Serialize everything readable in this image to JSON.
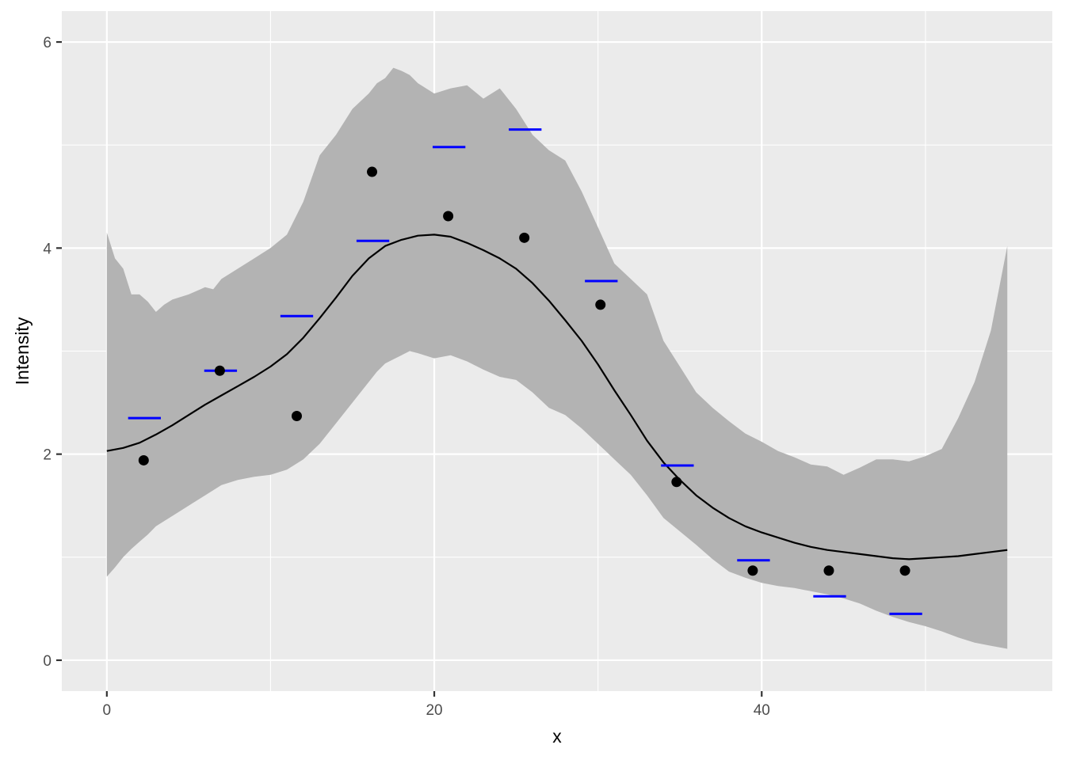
{
  "chart_data": {
    "type": "line",
    "xlabel": "x",
    "ylabel": "Intensity",
    "xlim": [
      -2.75,
      57.75
    ],
    "ylim": [
      -0.3,
      6.3
    ],
    "x_ticks": [
      0,
      20,
      40
    ],
    "y_ticks": [
      0,
      2,
      4,
      6
    ],
    "x_tick_labels": [
      "0",
      "20",
      "40"
    ],
    "y_tick_labels": [
      "0",
      "2",
      "4",
      "6"
    ],
    "grid": true,
    "colors": {
      "panel": "#ebebeb",
      "grid": "#ffffff",
      "ribbon": "#b3b3b3",
      "line": "#000000",
      "points": "#000000",
      "segments": "#0000ff"
    },
    "ribbon": {
      "x": [
        0,
        0.5,
        1,
        1.5,
        2,
        2.5,
        3,
        3.5,
        4,
        5,
        6,
        6.5,
        7,
        8,
        9,
        10,
        11,
        12,
        13,
        14,
        15,
        16,
        16.5,
        17,
        17.5,
        18,
        18.5,
        19,
        20,
        21,
        22,
        23,
        24,
        25,
        26,
        27,
        28,
        29,
        30,
        31,
        32,
        33,
        34,
        35,
        36,
        37,
        38,
        39,
        40,
        41,
        42,
        43,
        44,
        45,
        46,
        47,
        48,
        49,
        50,
        51,
        52,
        53,
        54,
        55
      ],
      "upper": [
        4.15,
        3.9,
        3.8,
        3.55,
        3.55,
        3.48,
        3.38,
        3.45,
        3.5,
        3.55,
        3.62,
        3.6,
        3.7,
        3.8,
        3.9,
        4.0,
        4.13,
        4.45,
        4.9,
        5.1,
        5.35,
        5.5,
        5.6,
        5.65,
        5.75,
        5.72,
        5.68,
        5.6,
        5.5,
        5.55,
        5.58,
        5.45,
        5.55,
        5.35,
        5.1,
        4.95,
        4.85,
        4.55,
        4.2,
        3.85,
        3.7,
        3.55,
        3.1,
        2.85,
        2.6,
        2.45,
        2.32,
        2.2,
        2.12,
        2.03,
        1.97,
        1.9,
        1.88,
        1.8,
        1.87,
        1.95,
        1.95,
        1.93,
        1.98,
        2.05,
        2.35,
        2.7,
        3.2,
        4.02
      ],
      "lower": [
        0.81,
        0.9,
        1.0,
        1.08,
        1.15,
        1.22,
        1.3,
        1.35,
        1.4,
        1.5,
        1.6,
        1.65,
        1.7,
        1.75,
        1.78,
        1.8,
        1.85,
        1.95,
        2.1,
        2.3,
        2.5,
        2.7,
        2.8,
        2.88,
        2.92,
        2.96,
        3.0,
        2.98,
        2.93,
        2.96,
        2.9,
        2.82,
        2.75,
        2.72,
        2.6,
        2.45,
        2.38,
        2.25,
        2.1,
        1.95,
        1.8,
        1.6,
        1.38,
        1.25,
        1.12,
        0.98,
        0.86,
        0.8,
        0.75,
        0.72,
        0.7,
        0.67,
        0.64,
        0.6,
        0.55,
        0.48,
        0.42,
        0.37,
        0.33,
        0.28,
        0.22,
        0.17,
        0.14,
        0.11
      ]
    },
    "fit": {
      "x": [
        0,
        1,
        2,
        3,
        4,
        5,
        6,
        7,
        8,
        9,
        10,
        11,
        12,
        13,
        14,
        15,
        16,
        17,
        18,
        19,
        20,
        21,
        22,
        23,
        24,
        25,
        26,
        27,
        28,
        29,
        30,
        31,
        32,
        33,
        34,
        35,
        36,
        37,
        38,
        39,
        40,
        41,
        42,
        43,
        44,
        45,
        46,
        47,
        48,
        49,
        50,
        51,
        52,
        53,
        54,
        55
      ],
      "y": [
        2.03,
        2.06,
        2.11,
        2.19,
        2.28,
        2.38,
        2.48,
        2.57,
        2.66,
        2.75,
        2.85,
        2.97,
        3.13,
        3.32,
        3.52,
        3.73,
        3.9,
        4.02,
        4.08,
        4.12,
        4.13,
        4.11,
        4.05,
        3.98,
        3.9,
        3.8,
        3.66,
        3.49,
        3.3,
        3.1,
        2.87,
        2.62,
        2.38,
        2.13,
        1.92,
        1.75,
        1.6,
        1.48,
        1.38,
        1.3,
        1.24,
        1.19,
        1.14,
        1.1,
        1.07,
        1.05,
        1.03,
        1.01,
        0.99,
        0.98,
        0.99,
        1.0,
        1.01,
        1.03,
        1.05,
        1.07
      ]
    },
    "points": {
      "x": [
        2.25,
        6.9,
        11.6,
        16.2,
        20.85,
        25.5,
        30.15,
        34.8,
        39.45,
        44.1,
        48.75
      ],
      "y": [
        1.94,
        2.81,
        2.37,
        4.74,
        4.31,
        4.1,
        3.45,
        1.73,
        0.87,
        0.87,
        0.87
      ]
    },
    "segments": {
      "x_center": [
        2.3,
        6.95,
        11.6,
        16.25,
        20.9,
        25.55,
        30.2,
        34.85,
        39.5,
        44.15,
        48.8
      ],
      "half_width": 1.0,
      "y": [
        2.35,
        2.81,
        3.34,
        4.07,
        4.98,
        5.15,
        3.68,
        1.89,
        0.97,
        0.62,
        0.45
      ]
    }
  }
}
